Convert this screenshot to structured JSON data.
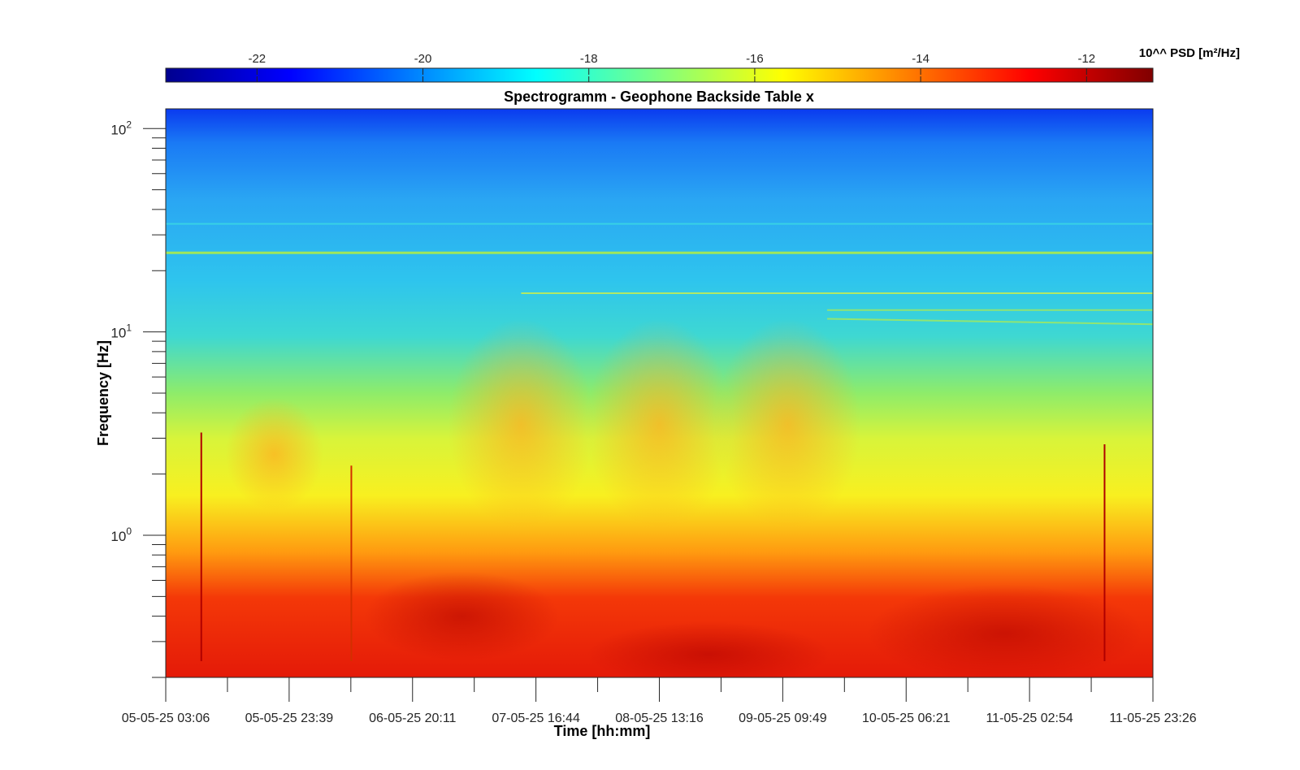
{
  "chart_data": {
    "type": "heatmap",
    "title": "Spectrogramm - Geophone Backside Table x",
    "xlabel": "Time [hh:mm]",
    "ylabel": "Frequency [Hz]",
    "y_scale": "log",
    "ylim": [
      0.2,
      125
    ],
    "x_tick_labels": [
      "05-05-25 03:06",
      "05-05-25 23:39",
      "06-05-25 20:11",
      "07-05-25 16:44",
      "08-05-25 13:16",
      "09-05-25 09:49",
      "10-05-25 06:21",
      "11-05-25 02:54",
      "11-05-25 23:26"
    ],
    "y_ticks": [
      {
        "base": "10",
        "exp": "0",
        "value": 1
      },
      {
        "base": "10",
        "exp": "1",
        "value": 10
      },
      {
        "base": "10",
        "exp": "2",
        "value": 100
      }
    ],
    "colorbar": {
      "label": "10^^ PSD [m²/Hz]",
      "range": [
        -23.1,
        -11.2
      ],
      "colormap": "jet",
      "ticks": [
        "-22",
        "-20",
        "-18",
        "-16",
        "-14",
        "-12"
      ]
    },
    "frequency_profile_log10psd": [
      {
        "freq": 0.2,
        "value": -11.7
      },
      {
        "freq": 0.3,
        "value": -11.8
      },
      {
        "freq": 0.45,
        "value": -12.0
      },
      {
        "freq": 0.6,
        "value": -12.4
      },
      {
        "freq": 0.8,
        "value": -13.6
      },
      {
        "freq": 1.1,
        "value": -14.8
      },
      {
        "freq": 2.0,
        "value": -15.3
      },
      {
        "freq": 4.0,
        "value": -16.2
      },
      {
        "freq": 7.0,
        "value": -17.2
      },
      {
        "freq": 12.0,
        "value": -18.1
      },
      {
        "freq": 20.0,
        "value": -18.5
      },
      {
        "freq": 50.0,
        "value": -18.9
      },
      {
        "freq": 90.0,
        "value": -19.6
      },
      {
        "freq": 125.0,
        "value": -20.3
      }
    ],
    "tonal_lines_hz": [
      24.5,
      15.5,
      34
    ]
  }
}
